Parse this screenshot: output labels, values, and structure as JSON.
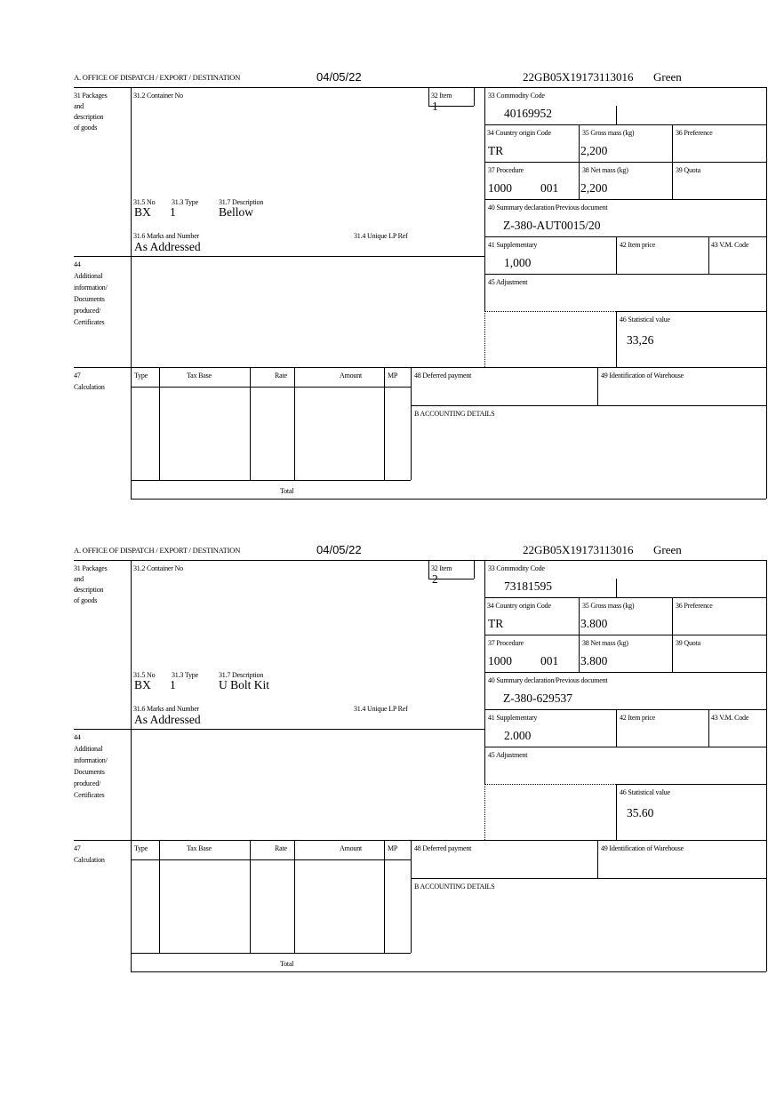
{
  "labels": {
    "office": "A. OFFICE OF DISPATCH / EXPORT / DESTINATION",
    "packages": [
      "31 Packages",
      "and",
      "description",
      "of goods"
    ],
    "container": "31.2 Container No",
    "no": "31.5 No",
    "type": "31.3 Type",
    "description": "31.7 Description",
    "marks": "31.6 Marks and Number",
    "unique_ref": "31.4 Unique LP Ref",
    "item": "32 Item",
    "commodity": "33 Commodity Code",
    "origin": "34 Country origin Code",
    "gross": "35 Gross mass (kg)",
    "preference": "36 Preference",
    "procedure": "37 Procedure",
    "net": "38 Net mass (kg)",
    "quota": "39 Quota",
    "summary": "40 Summary declaration/Previous document",
    "supplementary": "41 Supplementary",
    "item_price": "42 Item price",
    "vm_code": "43 V.M. Code",
    "additional": [
      "44",
      "Additional",
      "information/",
      "Documents",
      "produced/",
      "Certificates"
    ],
    "adjustment": "45 Adjustment",
    "statistical": "46 Statistical value",
    "calculation": [
      "47",
      "Calculation"
    ],
    "calc_cols": [
      "Type",
      "Tax Base",
      "Rate",
      "Amount",
      "MP"
    ],
    "total": "Total",
    "deferred": "48 Deferred payment",
    "warehouse": "49 Identification of Warehouse",
    "accounting": "B ACCOUNTING DETAILS"
  },
  "items": [
    {
      "date": "04/05/22",
      "reference": "22GB05X19173113016",
      "status": "Green",
      "item": "1",
      "commodity": "40169952",
      "origin": "TR",
      "gross": "2,200",
      "procedure": "1000",
      "procedure_code": "001",
      "net": "2,200",
      "summary": "Z-380-AUT0015/20",
      "supplementary": "1,000",
      "statistical": "33,26",
      "no": "BX",
      "type": "1",
      "description": "Bellow",
      "marks": "As Addressed"
    },
    {
      "date": "04/05/22",
      "reference": "22GB05X19173113016",
      "status": "Green",
      "item": "2",
      "commodity": "73181595",
      "origin": "TR",
      "gross": "3.800",
      "procedure": "1000",
      "procedure_code": "001",
      "net": "3.800",
      "summary": "Z-380-629537",
      "supplementary": "2.000",
      "statistical": "35.60",
      "no": "BX",
      "type": "1",
      "description": "U Bolt Kit",
      "marks": "As Addressed"
    }
  ]
}
